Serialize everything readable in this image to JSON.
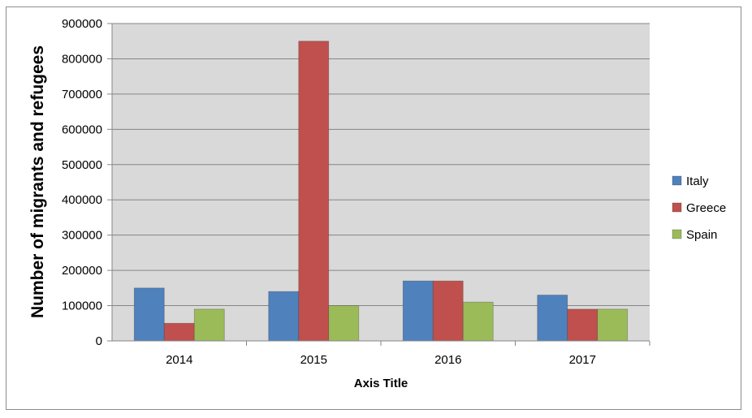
{
  "chart_data": {
    "type": "bar",
    "categories": [
      "2014",
      "2015",
      "2016",
      "2017"
    ],
    "series": [
      {
        "name": "Italy",
        "color": "#4F81BD",
        "values": [
          150000,
          140000,
          170000,
          130000
        ]
      },
      {
        "name": "Greece",
        "color": "#C0504D",
        "values": [
          50000,
          850000,
          170000,
          90000
        ]
      },
      {
        "name": "Spain",
        "color": "#9BBB59",
        "values": [
          90000,
          100000,
          110000,
          90000
        ]
      }
    ],
    "title": "",
    "xlabel": "Axis Title",
    "ylabel": "Number of migrants and refugees",
    "ylim": [
      0,
      900000
    ],
    "yticks": [
      "0",
      "100000",
      "200000",
      "300000",
      "400000",
      "500000",
      "600000",
      "700000",
      "800000",
      "900000"
    ],
    "grid": true,
    "plot_background": "#D9D9D9",
    "legend_position": "right"
  }
}
